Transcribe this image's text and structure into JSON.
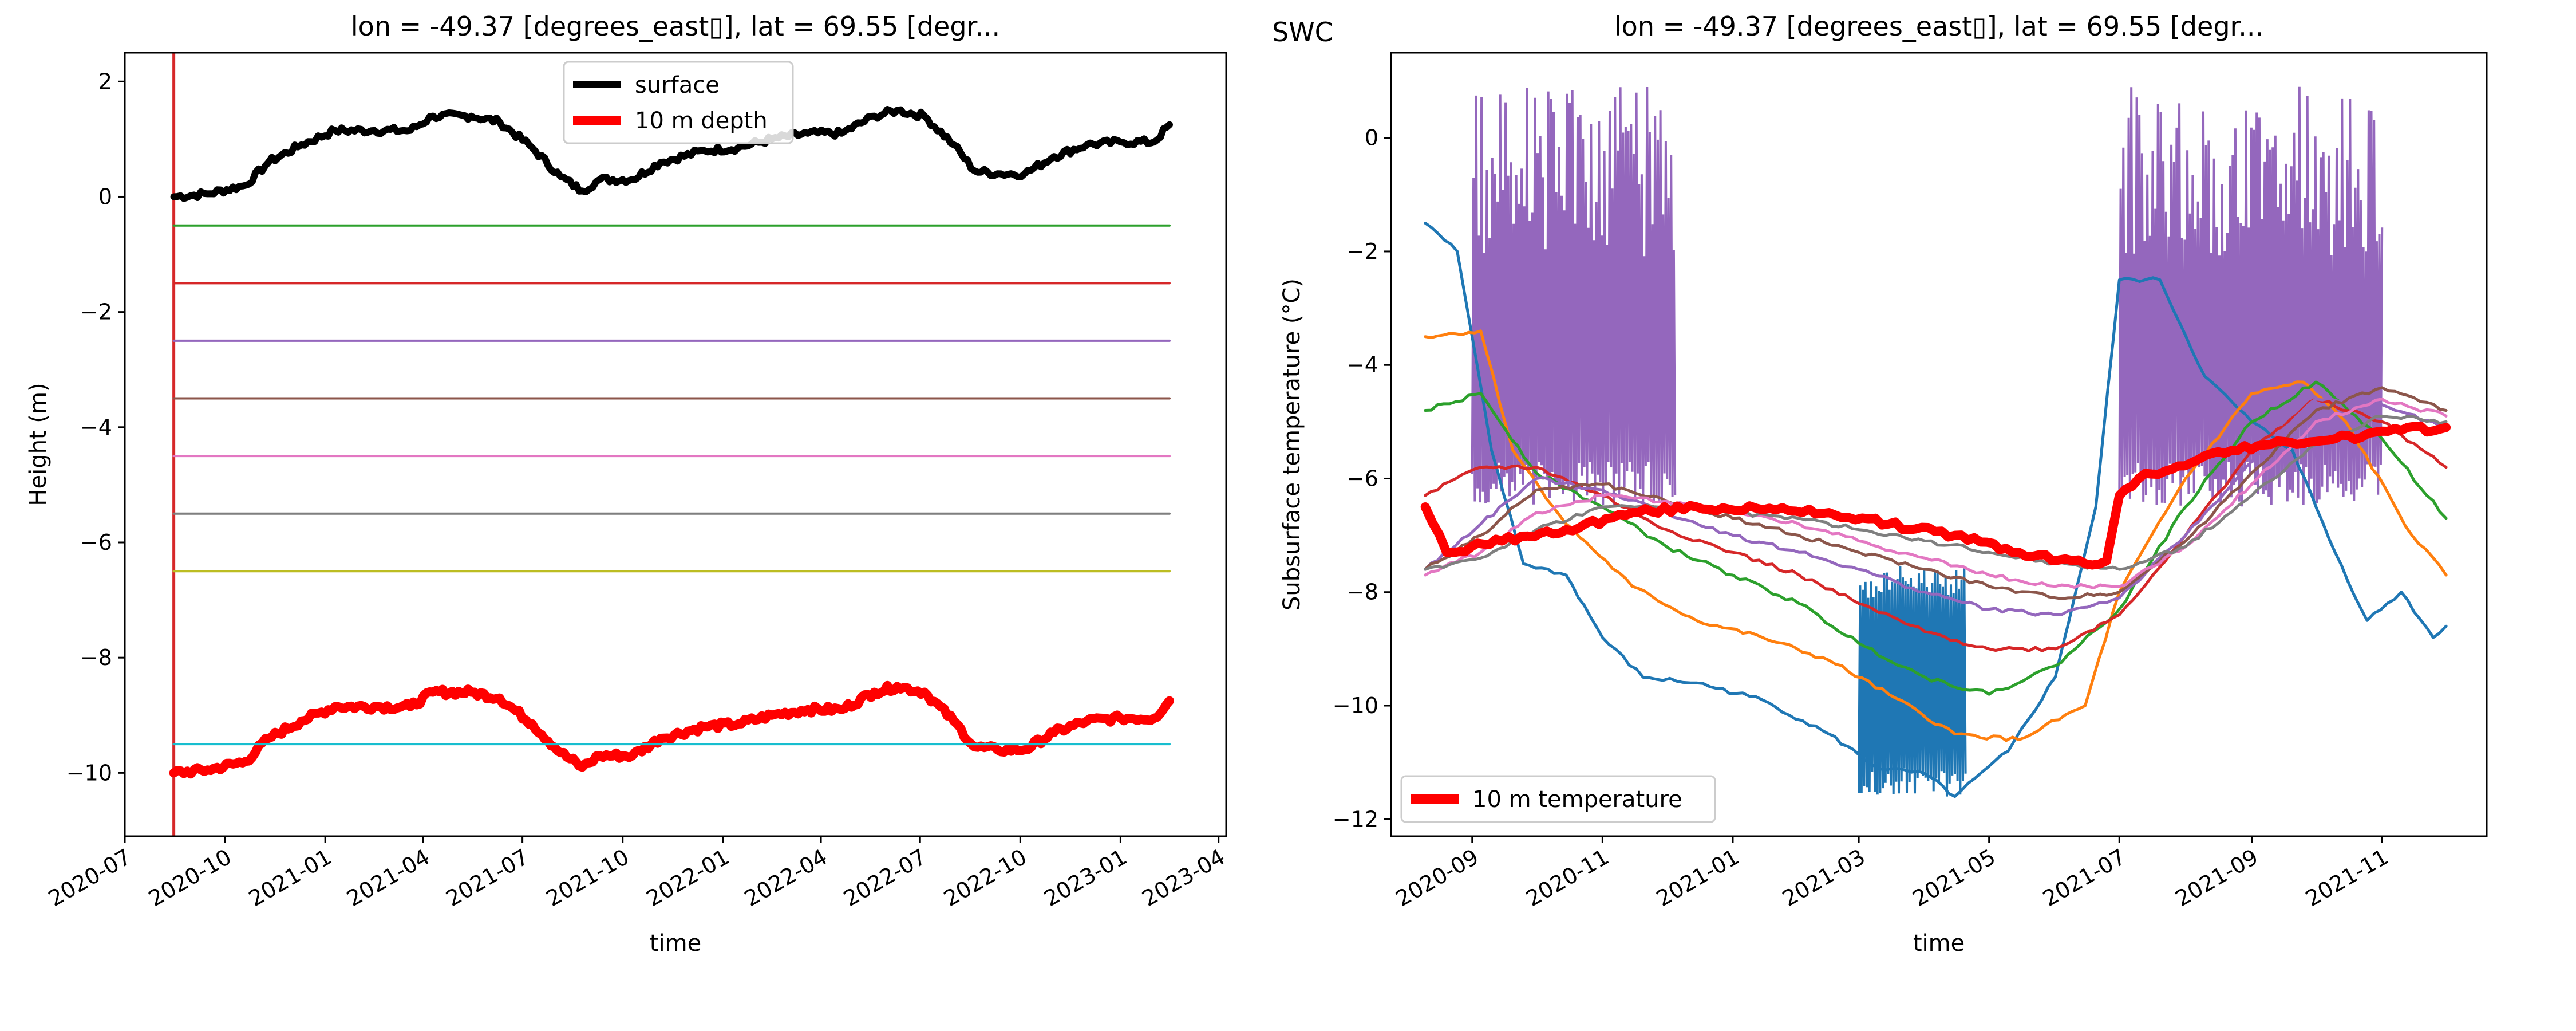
{
  "chart_data": [
    {
      "type": "line",
      "title": "lon = -49.37 [degrees_east▯], lat = 69.55 [degr...",
      "xlabel": "time",
      "ylabel": "Height (m)",
      "ylim": [
        -11.1,
        2.5
      ],
      "xlim": [
        "2020-07-01",
        "2023-04-08"
      ],
      "yticks": [
        2,
        0,
        -2,
        -4,
        -6,
        -8,
        -10
      ],
      "xticks": [
        "2020-07",
        "2020-10",
        "2021-01",
        "2021-04",
        "2021-07",
        "2021-10",
        "2022-01",
        "2022-04",
        "2022-07",
        "2022-10",
        "2023-01",
        "2023-04"
      ],
      "legend": "top-center",
      "vline": {
        "x": "2020-08-15",
        "color": "#d62728"
      },
      "series": [
        {
          "name": "surface",
          "color": "#000000",
          "width": 12,
          "x": [
            "2020-08-15",
            "2020-09-15",
            "2020-10-20",
            "2020-11-10",
            "2020-12-10",
            "2021-01-10",
            "2021-02-15",
            "2021-03-20",
            "2021-04-10",
            "2021-05-15",
            "2021-06-10",
            "2021-07-10",
            "2021-08-05",
            "2021-08-25",
            "2021-09-10",
            "2021-10-10",
            "2021-11-05",
            "2021-12-15",
            "2022-01-15",
            "2022-02-15",
            "2022-03-20",
            "2022-04-20",
            "2022-05-20",
            "2022-06-10",
            "2022-07-05",
            "2022-08-01",
            "2022-08-20",
            "2022-09-10",
            "2022-10-05",
            "2022-11-01",
            "2022-12-01",
            "2023-01-01",
            "2023-02-01",
            "2023-02-15"
          ],
          "values": [
            0.0,
            0.05,
            0.2,
            0.6,
            0.9,
            1.15,
            1.15,
            1.15,
            1.4,
            1.4,
            1.3,
            0.85,
            0.35,
            0.1,
            0.3,
            0.3,
            0.6,
            0.8,
            0.85,
            1.0,
            1.1,
            1.1,
            1.4,
            1.5,
            1.4,
            0.9,
            0.45,
            0.4,
            0.4,
            0.7,
            0.9,
            0.95,
            0.95,
            1.25
          ]
        },
        {
          "name": "10 m depth",
          "color": "#ff0000",
          "width": 16,
          "x": [
            "2020-08-15",
            "2020-09-15",
            "2020-10-20",
            "2020-11-10",
            "2020-12-10",
            "2021-01-10",
            "2021-02-15",
            "2021-03-20",
            "2021-04-10",
            "2021-05-15",
            "2021-06-10",
            "2021-07-10",
            "2021-08-05",
            "2021-08-25",
            "2021-09-10",
            "2021-10-10",
            "2021-11-05",
            "2021-12-15",
            "2022-01-15",
            "2022-02-15",
            "2022-03-20",
            "2022-04-20",
            "2022-05-20",
            "2022-06-10",
            "2022-07-05",
            "2022-08-01",
            "2022-08-20",
            "2022-09-10",
            "2022-10-05",
            "2022-11-01",
            "2022-12-01",
            "2023-01-01",
            "2023-02-01",
            "2023-02-15"
          ],
          "values": [
            -10.0,
            -9.95,
            -9.8,
            -9.4,
            -9.1,
            -8.85,
            -8.85,
            -8.85,
            -8.6,
            -8.6,
            -8.7,
            -9.15,
            -9.65,
            -9.9,
            -9.7,
            -9.7,
            -9.4,
            -9.2,
            -9.15,
            -9.0,
            -8.9,
            -8.9,
            -8.6,
            -8.5,
            -8.6,
            -9.1,
            -9.55,
            -9.6,
            -9.6,
            -9.3,
            -9.1,
            -9.05,
            -9.05,
            -8.75
          ]
        },
        {
          "name": "",
          "color": "#2ca02c",
          "width": 4,
          "x": [
            "2020-08-15",
            "2023-02-15"
          ],
          "values": [
            -0.5,
            -0.5
          ]
        },
        {
          "name": "",
          "color": "#d62728",
          "width": 4,
          "x": [
            "2020-08-15",
            "2023-02-15"
          ],
          "values": [
            -1.5,
            -1.5
          ]
        },
        {
          "name": "",
          "color": "#9467bd",
          "width": 4,
          "x": [
            "2020-08-15",
            "2023-02-15"
          ],
          "values": [
            -2.5,
            -2.5
          ]
        },
        {
          "name": "",
          "color": "#8c564b",
          "width": 4,
          "x": [
            "2020-08-15",
            "2023-02-15"
          ],
          "values": [
            -3.5,
            -3.5
          ]
        },
        {
          "name": "",
          "color": "#e377c2",
          "width": 4,
          "x": [
            "2020-08-15",
            "2023-02-15"
          ],
          "values": [
            -4.5,
            -4.5
          ]
        },
        {
          "name": "",
          "color": "#7f7f7f",
          "width": 4,
          "x": [
            "2020-08-15",
            "2023-02-15"
          ],
          "values": [
            -5.5,
            -5.5
          ]
        },
        {
          "name": "",
          "color": "#bcbd22",
          "width": 4,
          "x": [
            "2020-08-15",
            "2023-02-15"
          ],
          "values": [
            -6.5,
            -6.5
          ]
        },
        {
          "name": "",
          "color": "#17becf",
          "width": 4,
          "x": [
            "2020-08-15",
            "2023-02-15"
          ],
          "values": [
            -9.5,
            -9.5
          ]
        }
      ]
    },
    {
      "type": "line",
      "title": "lon = -49.37 [degrees_east▯], lat = 69.55 [degr...",
      "corner_label": "SWC",
      "xlabel": "time",
      "ylabel": "Subsurface temperature (°C)",
      "ylim": [
        -12.3,
        1.5
      ],
      "xlim": [
        "2020-07-25",
        "2021-12-20"
      ],
      "yticks": [
        0,
        -2,
        -4,
        -6,
        -8,
        -10,
        -12
      ],
      "xticks": [
        "2020-09",
        "2020-11",
        "2021-01",
        "2021-03",
        "2021-05",
        "2021-07",
        "2021-09",
        "2021-11"
      ],
      "legend": "lower-left",
      "series": [
        {
          "name": "",
          "color": "#1f77b4",
          "width": 5,
          "x": [
            "2020-08-10",
            "2020-08-25",
            "2020-09-10",
            "2020-09-25",
            "2020-10-15",
            "2020-11-01",
            "2020-11-20",
            "2020-12-15",
            "2021-01-15",
            "2021-02-15",
            "2021-03-10",
            "2021-04-01",
            "2021-04-15",
            "2021-05-10",
            "2021-06-01",
            "2021-06-20",
            "2021-07-01",
            "2021-07-20",
            "2021-08-10",
            "2021-09-01",
            "2021-09-20",
            "2021-10-10",
            "2021-10-25",
            "2021-11-10",
            "2021-11-25",
            "2021-12-01"
          ],
          "values": [
            -1.5,
            -2.0,
            -5.5,
            -7.5,
            -7.7,
            -8.8,
            -9.5,
            -9.6,
            -9.9,
            -10.5,
            -11.1,
            -11.2,
            -11.6,
            -10.8,
            -9.5,
            -6.5,
            -2.5,
            -2.5,
            -4.2,
            -5.0,
            -5.5,
            -7.3,
            -8.5,
            -8.0,
            -8.8,
            -8.6
          ]
        },
        {
          "name": "",
          "color": "#ff7f0e",
          "width": 5,
          "x": [
            "2020-08-10",
            "2020-09-05",
            "2020-09-20",
            "2020-10-15",
            "2020-11-15",
            "2020-12-15",
            "2021-01-15",
            "2021-02-15",
            "2021-03-15",
            "2021-04-15",
            "2021-05-15",
            "2021-06-15",
            "2021-07-01",
            "2021-08-01",
            "2021-09-01",
            "2021-09-25",
            "2021-10-15",
            "2021-11-15",
            "2021-12-01"
          ],
          "values": [
            -3.5,
            -3.4,
            -5.5,
            -6.8,
            -7.9,
            -8.5,
            -8.8,
            -9.2,
            -9.8,
            -10.5,
            -10.6,
            -10.0,
            -8.0,
            -6.0,
            -4.5,
            -4.3,
            -5.0,
            -7.0,
            -7.7
          ]
        },
        {
          "name": "",
          "color": "#2ca02c",
          "width": 5,
          "x": [
            "2020-08-10",
            "2020-09-05",
            "2020-10-01",
            "2020-11-01",
            "2020-12-01",
            "2021-01-01",
            "2021-02-01",
            "2021-03-01",
            "2021-04-01",
            "2021-05-01",
            "2021-06-01",
            "2021-07-01",
            "2021-08-01",
            "2021-09-01",
            "2021-10-01",
            "2021-11-01",
            "2021-12-01"
          ],
          "values": [
            -4.8,
            -4.5,
            -5.9,
            -6.5,
            -7.2,
            -7.7,
            -8.2,
            -8.9,
            -9.5,
            -9.8,
            -9.3,
            -8.3,
            -6.5,
            -5.0,
            -4.3,
            -5.3,
            -6.7
          ]
        },
        {
          "name": "",
          "color": "#d62728",
          "width": 5,
          "x": [
            "2020-08-10",
            "2020-09-05",
            "2020-10-01",
            "2020-11-01",
            "2020-12-01",
            "2021-01-01",
            "2021-02-01",
            "2021-03-01",
            "2021-04-01",
            "2021-05-01",
            "2021-06-01",
            "2021-07-01",
            "2021-08-01",
            "2021-09-01",
            "2021-10-01",
            "2021-11-01",
            "2021-12-01"
          ],
          "values": [
            -6.3,
            -5.8,
            -5.8,
            -6.3,
            -6.9,
            -7.3,
            -7.7,
            -8.2,
            -8.7,
            -9.0,
            -9.0,
            -8.4,
            -7.0,
            -5.5,
            -4.6,
            -5.0,
            -5.8
          ]
        },
        {
          "name": "",
          "color": "#9467bd",
          "width": 5,
          "x": [
            "2020-08-10",
            "2020-09-05",
            "2020-10-01",
            "2020-11-01",
            "2020-12-01",
            "2021-01-01",
            "2021-02-01",
            "2021-03-01",
            "2021-04-01",
            "2021-05-01",
            "2021-06-01",
            "2021-07-01",
            "2021-08-01",
            "2021-09-01",
            "2021-10-01",
            "2021-11-01",
            "2021-12-01"
          ],
          "values": [
            -7.6,
            -6.8,
            -6.0,
            -6.2,
            -6.6,
            -7.0,
            -7.3,
            -7.6,
            -8.0,
            -8.3,
            -8.4,
            -8.1,
            -7.0,
            -5.7,
            -4.6,
            -4.7,
            -5.1
          ]
        },
        {
          "name": "",
          "color": "#8c564b",
          "width": 5,
          "x": [
            "2020-08-10",
            "2020-09-05",
            "2020-10-01",
            "2020-11-01",
            "2020-12-01",
            "2021-01-01",
            "2021-02-01",
            "2021-03-01",
            "2021-04-01",
            "2021-05-01",
            "2021-06-01",
            "2021-07-01",
            "2021-08-01",
            "2021-09-01",
            "2021-10-01",
            "2021-11-01",
            "2021-12-01"
          ],
          "values": [
            -7.6,
            -7.0,
            -6.2,
            -6.1,
            -6.4,
            -6.7,
            -7.0,
            -7.3,
            -7.6,
            -7.9,
            -8.1,
            -8.0,
            -7.1,
            -5.9,
            -4.8,
            -4.4,
            -4.8
          ]
        },
        {
          "name": "",
          "color": "#e377c2",
          "width": 5,
          "x": [
            "2020-08-10",
            "2020-09-05",
            "2020-10-01",
            "2020-11-01",
            "2020-12-01",
            "2021-01-01",
            "2021-02-01",
            "2021-03-01",
            "2021-04-01",
            "2021-05-01",
            "2021-06-01",
            "2021-07-01",
            "2021-08-01",
            "2021-09-01",
            "2021-10-01",
            "2021-11-01",
            "2021-12-01"
          ],
          "values": [
            -7.7,
            -7.3,
            -6.6,
            -6.3,
            -6.4,
            -6.6,
            -6.8,
            -7.1,
            -7.4,
            -7.7,
            -7.9,
            -7.9,
            -7.2,
            -6.1,
            -5.0,
            -4.6,
            -4.9
          ]
        },
        {
          "name": "",
          "color": "#7f7f7f",
          "width": 5,
          "x": [
            "2020-08-10",
            "2020-09-05",
            "2020-10-01",
            "2020-11-01",
            "2020-12-01",
            "2021-01-01",
            "2021-02-01",
            "2021-03-01",
            "2021-04-01",
            "2021-05-01",
            "2021-06-01",
            "2021-07-01",
            "2021-08-01",
            "2021-09-01",
            "2021-10-01",
            "2021-11-01",
            "2021-12-01"
          ],
          "values": [
            -7.6,
            -7.4,
            -6.9,
            -6.5,
            -6.5,
            -6.6,
            -6.7,
            -6.9,
            -7.1,
            -7.3,
            -7.5,
            -7.6,
            -7.2,
            -6.3,
            -5.4,
            -4.9,
            -5.0
          ]
        },
        {
          "name": "10 m temperature",
          "color": "#ff0000",
          "width": 16,
          "x": [
            "2020-08-10",
            "2020-08-20",
            "2020-09-15",
            "2020-10-15",
            "2020-11-15",
            "2020-12-15",
            "2021-01-15",
            "2021-02-15",
            "2021-03-15",
            "2021-04-15",
            "2021-05-15",
            "2021-06-15",
            "2021-06-25",
            "2021-07-01",
            "2021-07-10",
            "2021-08-10",
            "2021-09-10",
            "2021-10-10",
            "2021-11-10",
            "2021-12-01"
          ],
          "values": [
            -6.5,
            -7.3,
            -7.1,
            -6.9,
            -6.6,
            -6.5,
            -6.55,
            -6.6,
            -6.8,
            -7.0,
            -7.3,
            -7.5,
            -7.45,
            -6.3,
            -6.0,
            -5.6,
            -5.4,
            -5.3,
            -5.15,
            -5.1
          ]
        }
      ],
      "bands": [
        {
          "color": "#9467bd",
          "x0": "2020-09-01",
          "x1": "2020-12-05",
          "y_high": 0.9,
          "base": "2020-09-01"
        },
        {
          "color": "#9467bd",
          "x0": "2021-07-01",
          "x1": "2021-11-01",
          "y_high": 0.9,
          "base": "2021-07-01"
        },
        {
          "color": "#1f77b4",
          "x0": "2021-03-01",
          "x1": "2021-04-20",
          "y_low": -11.6,
          "y_high": -7.5
        }
      ]
    }
  ]
}
